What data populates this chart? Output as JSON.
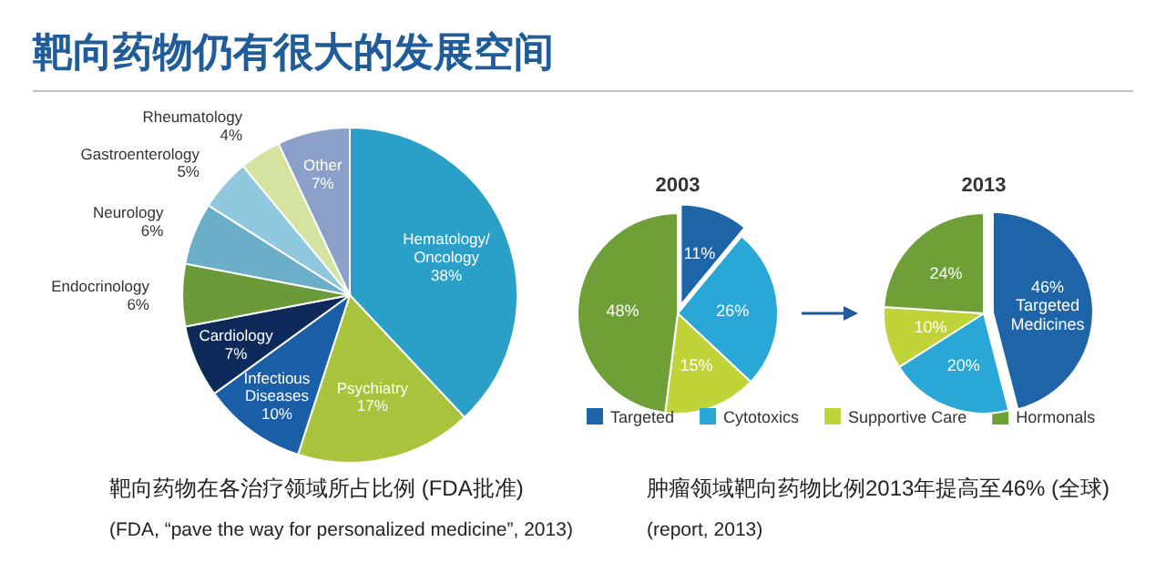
{
  "chart_data": [
    {
      "type": "pie",
      "title": "靶向药物仍有很大的发展空间",
      "categories": [
        "Hematology/Oncology",
        "Psychiatry",
        "Infectious Diseases",
        "Cardiology",
        "Endocrinology",
        "Neurology",
        "Gastroenterology",
        "Rheumatology",
        "Other"
      ],
      "values": [
        38,
        17,
        10,
        7,
        6,
        6,
        5,
        4,
        7
      ],
      "colors": [
        "#2aa0c8",
        "#a8c43c",
        "#1a5ea8",
        "#0e2a5a",
        "#6a9a3a",
        "#6aaec8",
        "#90c8e0",
        "#d4e4a0",
        "#8aa0c8"
      ],
      "value_labels": [
        "38%",
        "17%",
        "10%",
        "7%",
        "6%",
        "6%",
        "5%",
        "4%",
        "7%"
      ],
      "legend": false,
      "annotations": [
        "靶向药物在各治疗领域所占比例 (FDA批准)",
        "(FDA, “pave the way for personalized medicine”, 2013)"
      ]
    },
    {
      "type": "pie",
      "title": "2003",
      "categories": [
        "Targeted",
        "Cytotoxics",
        "Supportive Care",
        "Hormonals"
      ],
      "values": [
        11,
        26,
        15,
        48
      ],
      "colors": [
        "#1e64a8",
        "#29a8d8",
        "#c0d43a",
        "#6fa038"
      ],
      "value_labels": [
        "11%",
        "26%",
        "15%",
        "48%"
      ],
      "legend": "bottom",
      "annotations": [
        "肿瘤领域靶向药物比例2013年提高至46% (全球)",
        "(report, 2013)"
      ]
    },
    {
      "type": "pie",
      "title": "2013",
      "categories": [
        "Targeted Medicines",
        null,
        null,
        null
      ],
      "values": [
        46,
        20,
        10,
        24
      ],
      "colors": [
        "#1e64a8",
        "#29a8d8",
        "#c0d43a",
        "#6fa038"
      ],
      "value_labels": [
        "46%",
        "20%",
        "10%",
        "24%"
      ],
      "legend": false
    }
  ]
}
